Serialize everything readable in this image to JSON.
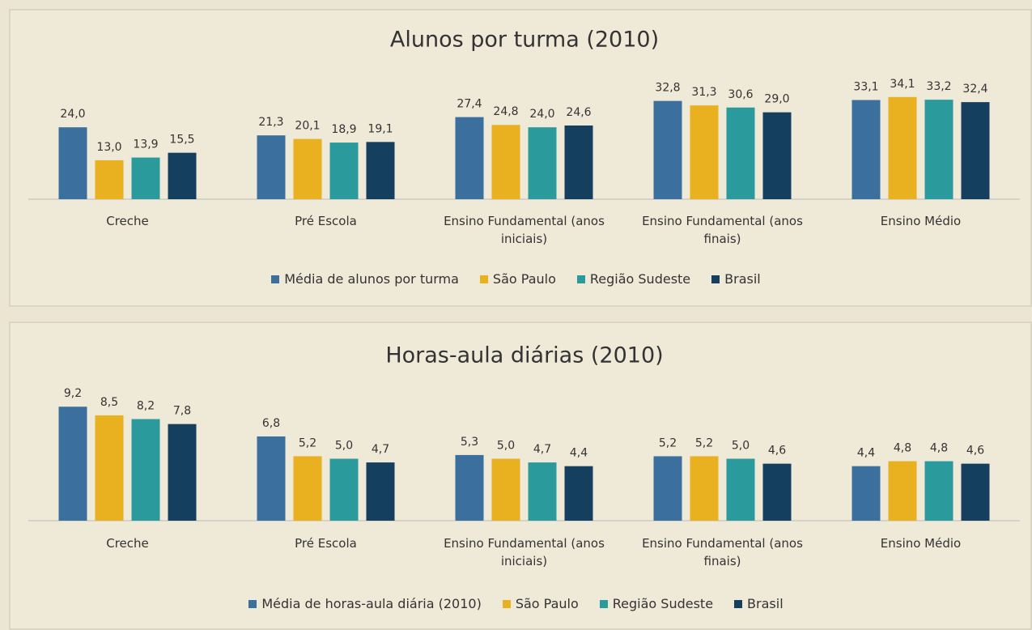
{
  "chart_data": [
    {
      "type": "bar",
      "title": "Alunos por turma (2010)",
      "categories": [
        "Creche",
        "Pré Escola",
        "Ensino Fundamental (anos iniciais)",
        "Ensino Fundamental (anos finais)",
        "Ensino Médio"
      ],
      "series": [
        {
          "name": "Média de alunos por turma",
          "color": "#3a6f9e",
          "values": [
            24.0,
            21.3,
            27.4,
            32.8,
            33.1
          ],
          "value_labels": [
            "24,0",
            "21,3",
            "27,4",
            "32,8",
            "33,1"
          ]
        },
        {
          "name": "São Paulo",
          "color": "#e9b020",
          "values": [
            13.0,
            20.1,
            24.8,
            31.3,
            34.1
          ],
          "value_labels": [
            "13,0",
            "20,1",
            "24,8",
            "31,3",
            "34,1"
          ]
        },
        {
          "name": "Região Sudeste",
          "color": "#2a9a9c",
          "values": [
            13.9,
            18.9,
            24.0,
            30.6,
            33.2
          ],
          "value_labels": [
            "13,9",
            "18,9",
            "24,0",
            "30,6",
            "33,2"
          ]
        },
        {
          "name": "Brasil",
          "color": "#143f5e",
          "values": [
            15.5,
            19.1,
            24.6,
            29.0,
            32.4
          ],
          "value_labels": [
            "15,5",
            "19,1",
            "24,6",
            "29,0",
            "32,4"
          ]
        }
      ]
    },
    {
      "type": "bar",
      "title": "Horas-aula diárias (2010)",
      "categories": [
        "Creche",
        "Pré Escola",
        "Ensino Fundamental (anos iniciais)",
        "Ensino Fundamental (anos finais)",
        "Ensino Médio"
      ],
      "series": [
        {
          "name": "Média de horas-aula diária (2010)",
          "color": "#3a6f9e",
          "values": [
            9.2,
            6.8,
            5.3,
            5.2,
            4.4
          ],
          "value_labels": [
            "9,2",
            "6,8",
            "5,3",
            "5,2",
            "4,4"
          ]
        },
        {
          "name": "São Paulo",
          "color": "#e9b020",
          "values": [
            8.5,
            5.2,
            5.0,
            5.2,
            4.8
          ],
          "value_labels": [
            "8,5",
            "5,2",
            "5,0",
            "5,2",
            "4,8"
          ]
        },
        {
          "name": "Região Sudeste",
          "color": "#2a9a9c",
          "values": [
            8.2,
            5.0,
            4.7,
            5.0,
            4.8
          ],
          "value_labels": [
            "8,2",
            "5,0",
            "4,7",
            "5,0",
            "4,8"
          ]
        },
        {
          "name": "Brasil",
          "color": "#143f5e",
          "values": [
            7.8,
            4.7,
            4.4,
            4.6,
            4.6
          ],
          "value_labels": [
            "7,8",
            "4,7",
            "4,4",
            "4,6",
            "4,6"
          ]
        }
      ]
    }
  ]
}
